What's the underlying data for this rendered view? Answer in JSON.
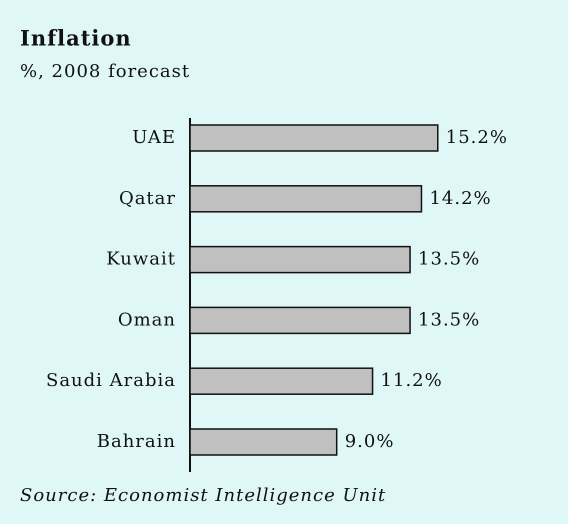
{
  "chart_data": {
    "type": "bar",
    "orientation": "horizontal",
    "title": "Inflation",
    "subtitle": "%, 2008 forecast",
    "source": "Source: Economist Intelligence Unit",
    "categories": [
      "UAE",
      "Qatar",
      "Kuwait",
      "Oman",
      "Saudi Arabia",
      "Bahrain"
    ],
    "values": [
      15.2,
      14.2,
      13.5,
      13.5,
      11.2,
      9.0
    ],
    "value_labels": [
      "15.2%",
      "14.2%",
      "13.5%",
      "13.5%",
      "11.2%",
      "9.0%"
    ],
    "color": "#c0c0c0"
  }
}
